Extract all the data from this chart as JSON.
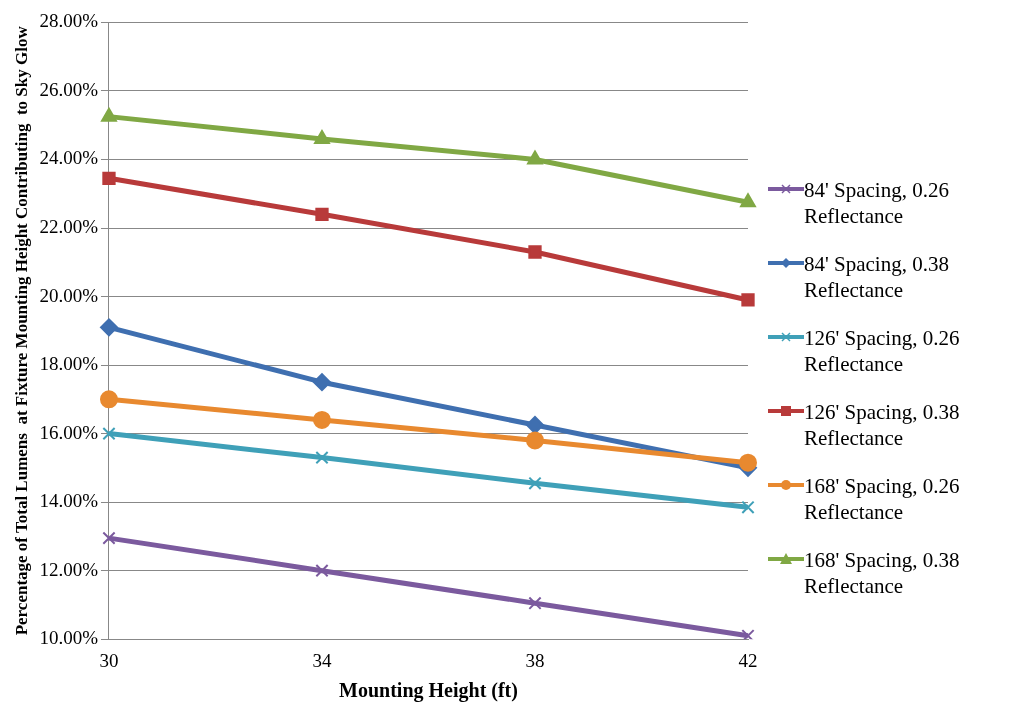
{
  "chart_data": {
    "type": "line",
    "xlabel": "Mounting Height (ft)",
    "ylabel": "Percentage of Total Lumens  at Fixture Mounting Height Contributing  to Sky Glow",
    "categories": [
      "30",
      "34",
      "38",
      "42"
    ],
    "ylim": [
      10,
      28
    ],
    "yticks": [
      {
        "value": 10,
        "label": "10.00%"
      },
      {
        "value": 12,
        "label": "12.00%"
      },
      {
        "value": 14,
        "label": "14.00%"
      },
      {
        "value": 16,
        "label": "16.00%"
      },
      {
        "value": 18,
        "label": "18.00%"
      },
      {
        "value": 20,
        "label": "20.00%"
      },
      {
        "value": 22,
        "label": "22.00%"
      },
      {
        "value": 24,
        "label": "24.00%"
      },
      {
        "value": 26,
        "label": "26.00%"
      },
      {
        "value": 28,
        "label": "28.00%"
      }
    ],
    "grid": "y",
    "legend": "right",
    "series": [
      {
        "name": "84' Spacing, 0.26 Reflectance",
        "color": "#7b5a9e",
        "marker": "cross",
        "values": [
          12.95,
          12.0,
          11.05,
          10.1
        ]
      },
      {
        "name": "84' Spacing, 0.38 Reflectance",
        "color": "#3f6fb0",
        "marker": "diamond",
        "values": [
          19.1,
          17.5,
          16.25,
          15.0
        ]
      },
      {
        "name": "126' Spacing, 0.26 Reflectance",
        "color": "#3fa0b8",
        "marker": "cross",
        "values": [
          16.0,
          15.3,
          14.55,
          13.85
        ]
      },
      {
        "name": "126' Spacing, 0.38 Reflectance",
        "color": "#b83a3a",
        "marker": "square",
        "values": [
          23.45,
          22.4,
          21.3,
          19.9
        ]
      },
      {
        "name": "168' Spacing, 0.26 Reflectance",
        "color": "#e8892f",
        "marker": "circle",
        "values": [
          17.0,
          16.4,
          15.8,
          15.15
        ]
      },
      {
        "name": "168' Spacing, 0.38 Reflectance",
        "color": "#80a844",
        "marker": "triangle",
        "values": [
          25.25,
          24.6,
          24.0,
          22.75
        ]
      }
    ]
  }
}
